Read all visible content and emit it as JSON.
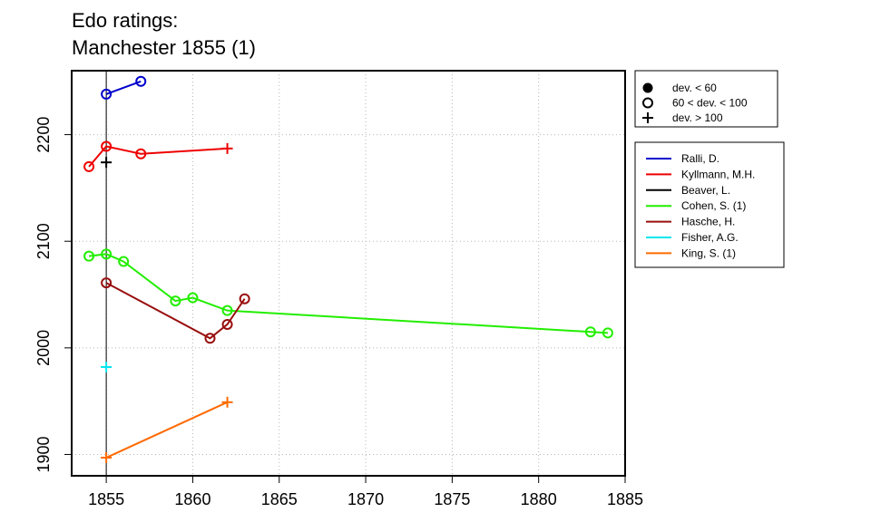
{
  "chart_data": {
    "type": "line",
    "title": "Edo ratings:",
    "subtitle": "Manchester 1855 (1)",
    "xlabel": "",
    "ylabel": "",
    "xlim": [
      1853,
      1885
    ],
    "ylim": [
      1880,
      2260
    ],
    "x_ticks": [
      1855,
      1860,
      1865,
      1870,
      1875,
      1880,
      1885
    ],
    "y_ticks": [
      1900,
      2000,
      2100,
      2200
    ],
    "grid": true,
    "reference_line_x": 1855,
    "deviation_legend": [
      {
        "marker": "filled-circle",
        "label": "dev. < 60"
      },
      {
        "marker": "open-circle",
        "label": "60 < dev. < 100"
      },
      {
        "marker": "plus",
        "label": "dev. > 100"
      }
    ],
    "series": [
      {
        "name": "Ralli, D.",
        "color": "#0000cc",
        "points": [
          {
            "x": 1855,
            "y": 2238,
            "m": "open-circle"
          },
          {
            "x": 1857,
            "y": 2250,
            "m": "open-circle"
          }
        ]
      },
      {
        "name": "Kyllmann, M.H.",
        "color": "#ee0000",
        "points": [
          {
            "x": 1854,
            "y": 2170,
            "m": "open-circle"
          },
          {
            "x": 1855,
            "y": 2189,
            "m": "open-circle"
          },
          {
            "x": 1857,
            "y": 2182,
            "m": "open-circle"
          },
          {
            "x": 1862,
            "y": 2187,
            "m": "plus"
          }
        ]
      },
      {
        "name": "Beaver, L.",
        "color": "#000000",
        "points": [
          {
            "x": 1855,
            "y": 2174,
            "m": "plus"
          }
        ]
      },
      {
        "name": "Cohen, S. (1)",
        "color": "#22ee00",
        "points": [
          {
            "x": 1854,
            "y": 2086,
            "m": "open-circle"
          },
          {
            "x": 1855,
            "y": 2088,
            "m": "open-circle"
          },
          {
            "x": 1856,
            "y": 2081,
            "m": "open-circle"
          },
          {
            "x": 1859,
            "y": 2044,
            "m": "open-circle"
          },
          {
            "x": 1860,
            "y": 2047,
            "m": "open-circle"
          },
          {
            "x": 1862,
            "y": 2035,
            "m": "open-circle"
          },
          {
            "x": 1883,
            "y": 2015,
            "m": "open-circle"
          },
          {
            "x": 1884,
            "y": 2014,
            "m": "open-circle"
          }
        ]
      },
      {
        "name": "Hasche, H.",
        "color": "#990f0f",
        "points": [
          {
            "x": 1855,
            "y": 2061,
            "m": "open-circle"
          },
          {
            "x": 1861,
            "y": 2009,
            "m": "open-circle"
          },
          {
            "x": 1862,
            "y": 2022,
            "m": "open-circle"
          },
          {
            "x": 1863,
            "y": 2046,
            "m": "open-circle"
          }
        ]
      },
      {
        "name": "Fisher, A.G.",
        "color": "#00e5ee",
        "points": [
          {
            "x": 1855,
            "y": 1982,
            "m": "plus"
          }
        ]
      },
      {
        "name": "King, S. (1)",
        "color": "#ff6a00",
        "points": [
          {
            "x": 1855,
            "y": 1897,
            "m": "plus"
          },
          {
            "x": 1862,
            "y": 1949,
            "m": "plus"
          }
        ]
      }
    ]
  }
}
